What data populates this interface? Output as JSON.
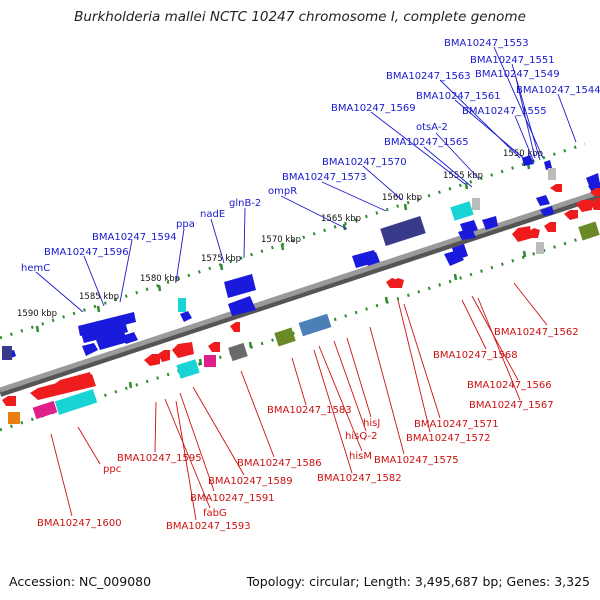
{
  "title": "Burkholderia mallei NCTC 10247 chromosome I, complete genome",
  "footer": {
    "accession": "Accession: NC_009080",
    "stats": "Topology: circular; Length: 3,495,687 bp; Genes: 3,325"
  },
  "colors": {
    "backbone": "#8a8a8a",
    "dot_ticks": "#2e8b2e",
    "forward_gene": "#1a1add",
    "reverse_gene": "#ee1c1c",
    "forward_label": "#1a1acc",
    "reverse_label": "#cc1111",
    "cyan_feature": "#18d4d4",
    "magenta_feature": "#e0208a",
    "gray_feature": "#6a6a6a",
    "olive_feature": "#6a8a28",
    "steelblue_feature": "#4a7fb8",
    "darkslate_feature": "#3a3a8a",
    "orange_feature": "#e88010",
    "silver_feature": "#bbbbbb"
  },
  "scale_labels": [
    "1550 kbp",
    "1555 kbp",
    "1560 kbp",
    "1565 kbp",
    "1570 kbp",
    "1575 kbp",
    "1580 kbp",
    "1585 kbp",
    "1590 kbp"
  ],
  "forward_labels": [
    "BMA10247_1553",
    "BMA10247_1551",
    "BMA10247_1563",
    "BMA10247_1549",
    "BMA10247_1544",
    "BMA10247_1561",
    "BMA10247_1569",
    "BMA10247_1555",
    "otsA-2",
    "BMA10247_1565",
    "BMA10247_1570",
    "BMA10247_1573",
    "ompR",
    "glnB-2",
    "nadE",
    "ppa",
    "BMA10247_1594",
    "BMA10247_1596",
    "hemC"
  ],
  "reverse_labels": [
    "BMA10247_1562",
    "BMA10247_1568",
    "BMA10247_1566",
    "BMA10247_1567",
    "BMA10247_1571",
    "BMA10247_1572",
    "BMA10247_1575",
    "hisJ",
    "hisQ-2",
    "hisM",
    "BMA10247_1583",
    "BMA10247_1582",
    "BMA10247_1586",
    "BMA10247_1595",
    "BMA10247_1589",
    "ppc",
    "BMA10247_1591",
    "fabG",
    "BMA10247_1593",
    "BMA10247_1600"
  ]
}
